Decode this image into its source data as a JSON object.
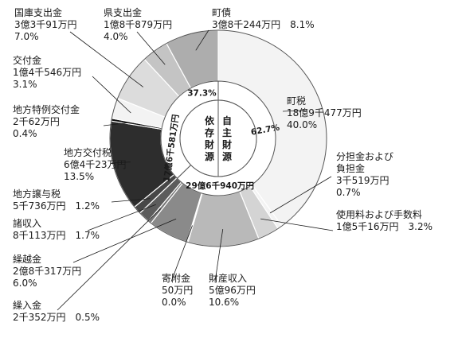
{
  "chart_data": {
    "type": "pie",
    "slices": [
      {
        "name": "町税",
        "amount": "18億9千477万円",
        "value": 40.0,
        "pct": "40.0%",
        "color": "#f3f3f3"
      },
      {
        "name": "分担金および負担金",
        "amount": "3千519万円",
        "value": 0.7,
        "pct": "0.7%",
        "color": "#f3f3f3"
      },
      {
        "name": "使用料および手数料",
        "amount": "1億5千16万円",
        "value": 3.2,
        "pct": "3.2%",
        "color": "#d4d4d4"
      },
      {
        "name": "財産収入",
        "amount": "5億96万円",
        "value": 10.6,
        "pct": "10.6%",
        "color": "#b9b9b9"
      },
      {
        "name": "寄附金",
        "amount": "50万円",
        "value": 0.0,
        "pct": "0.0%",
        "color": "#8a8a8a"
      },
      {
        "name": "繰越金",
        "amount": "2億8千317万円",
        "value": 6.0,
        "pct": "6.0%",
        "color": "#8a8a8a"
      },
      {
        "name": "繰入金",
        "amount": "2千352万円",
        "value": 0.5,
        "pct": "0.5%",
        "color": "#777777"
      },
      {
        "name": "諸収入",
        "amount": "8千113万円",
        "value": 1.7,
        "pct": "1.7%",
        "color": "#5c5c5c"
      },
      {
        "name": "地方譲与税",
        "amount": "5千736万円",
        "value": 1.2,
        "pct": "1.2%",
        "color": "#474747"
      },
      {
        "name": "地方交付税",
        "amount": "6億4千23万円",
        "value": 13.5,
        "pct": "13.5%",
        "color": "#2d2d2d"
      },
      {
        "name": "地方特例交付金",
        "amount": "2千62万円",
        "value": 0.4,
        "pct": "0.4%",
        "color": "#111111"
      },
      {
        "name": "交付金",
        "amount": "1億4千546万円",
        "value": 3.1,
        "pct": "3.1%",
        "color": "#f3f3f3"
      },
      {
        "name": "国庫支出金",
        "amount": "3億3千91万円",
        "value": 7.0,
        "pct": "7.0%",
        "color": "#dcdcdc"
      },
      {
        "name": "県支出金",
        "amount": "1億8千879万円",
        "value": 4.0,
        "pct": "4.0%",
        "color": "#c4c4c4"
      },
      {
        "name": "町債",
        "amount": "3億8千244万円",
        "value": 8.1,
        "pct": "8.1%",
        "color": "#adadad"
      }
    ],
    "groups": [
      {
        "name": "自主財源",
        "amount": "29億6千940万円",
        "pct": "62.7%"
      },
      {
        "name": "依存財源",
        "amount": "17億6千581万円",
        "pct": "37.3%"
      }
    ]
  }
}
